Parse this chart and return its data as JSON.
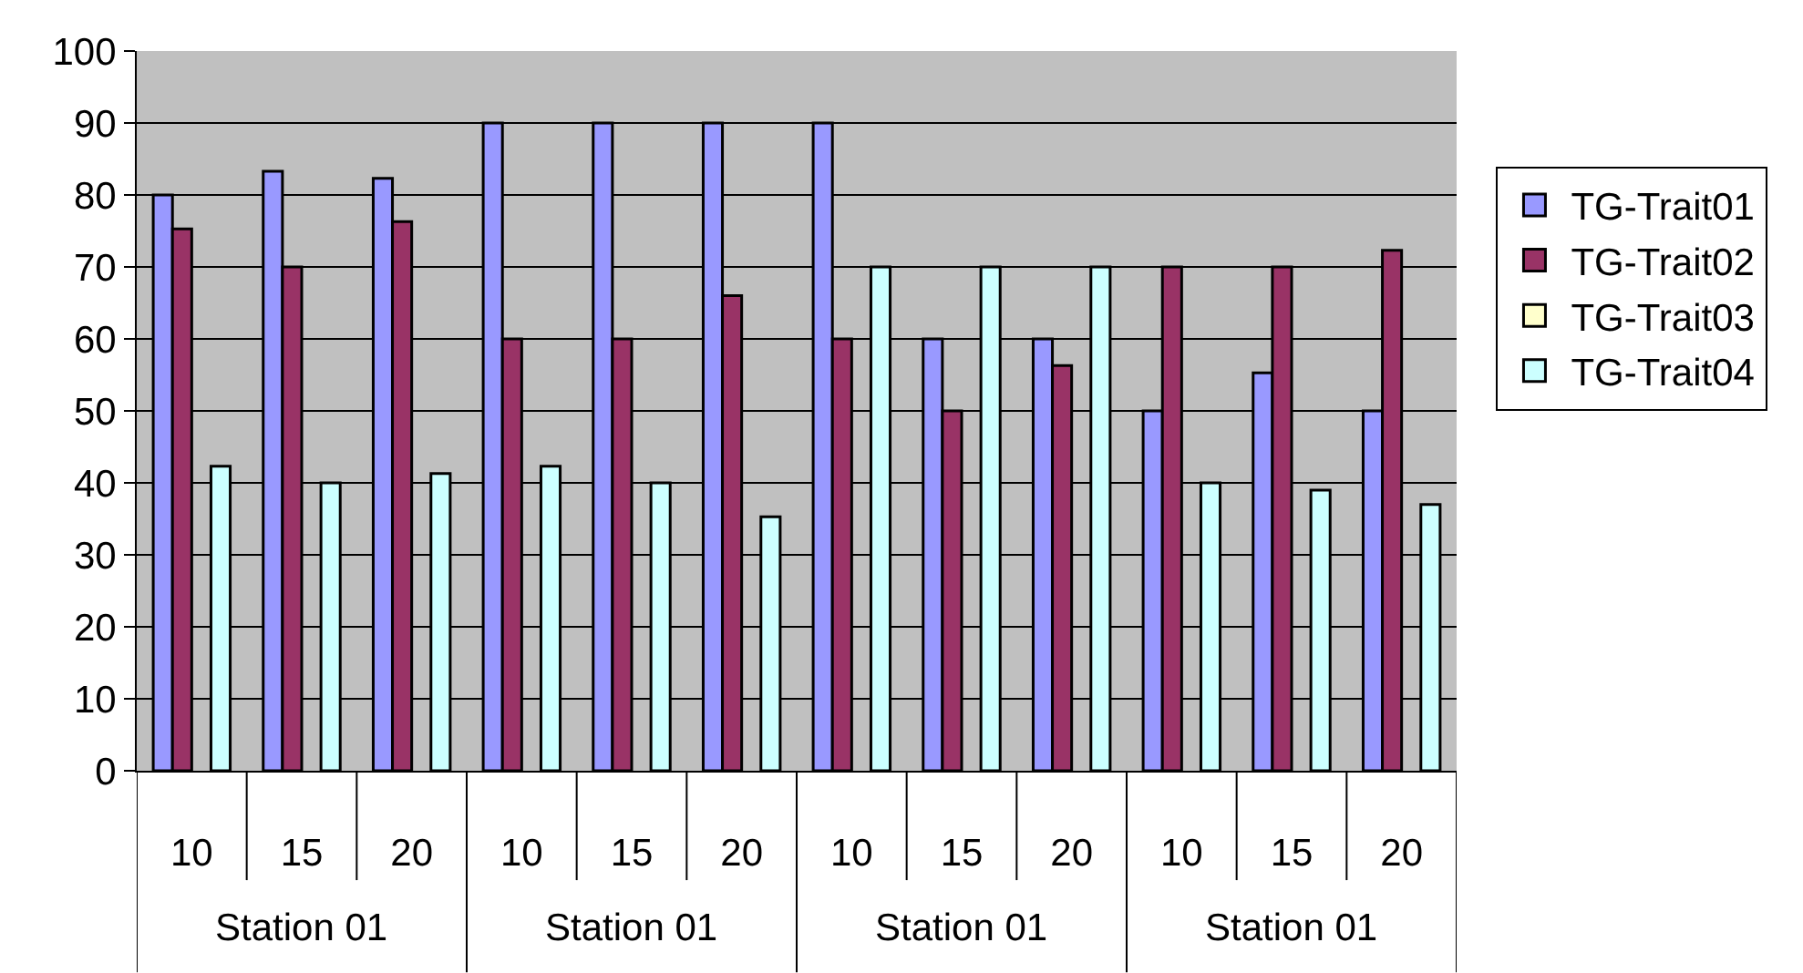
{
  "chart_data": {
    "type": "bar",
    "categories": [
      "10",
      "15",
      "20",
      "10",
      "15",
      "20",
      "10",
      "15",
      "20",
      "10",
      "15",
      "20"
    ],
    "series": [
      {
        "name": "TG-Trait01",
        "color": "#9999ff",
        "values": [
          80,
          83.3,
          82.3,
          90,
          90,
          90,
          90,
          60,
          60,
          50,
          55.3,
          50
        ]
      },
      {
        "name": "TG-Trait02",
        "color": "#993366",
        "values": [
          75.3,
          70,
          76.3,
          60,
          60,
          66,
          60,
          50,
          56.3,
          70,
          70,
          72.3
        ]
      },
      {
        "name": "TG-Trait03",
        "color": "#ffffcc",
        "values": [
          null,
          null,
          null,
          null,
          null,
          null,
          null,
          null,
          null,
          null,
          null,
          null
        ]
      },
      {
        "name": "TG-Trait04",
        "color": "#ccffff",
        "values": [
          42.3,
          40,
          41.3,
          42.3,
          40,
          35.3,
          70,
          70,
          70,
          40,
          39,
          37
        ]
      }
    ],
    "annotations": [
      "Station 01",
      "Station 01",
      "Station 01",
      "Station 01"
    ],
    "ylim": [
      0,
      100
    ],
    "yticks": [
      0,
      10,
      20,
      30,
      40,
      50,
      60,
      70,
      80,
      90,
      100
    ],
    "grid": "y",
    "legend": "right"
  }
}
